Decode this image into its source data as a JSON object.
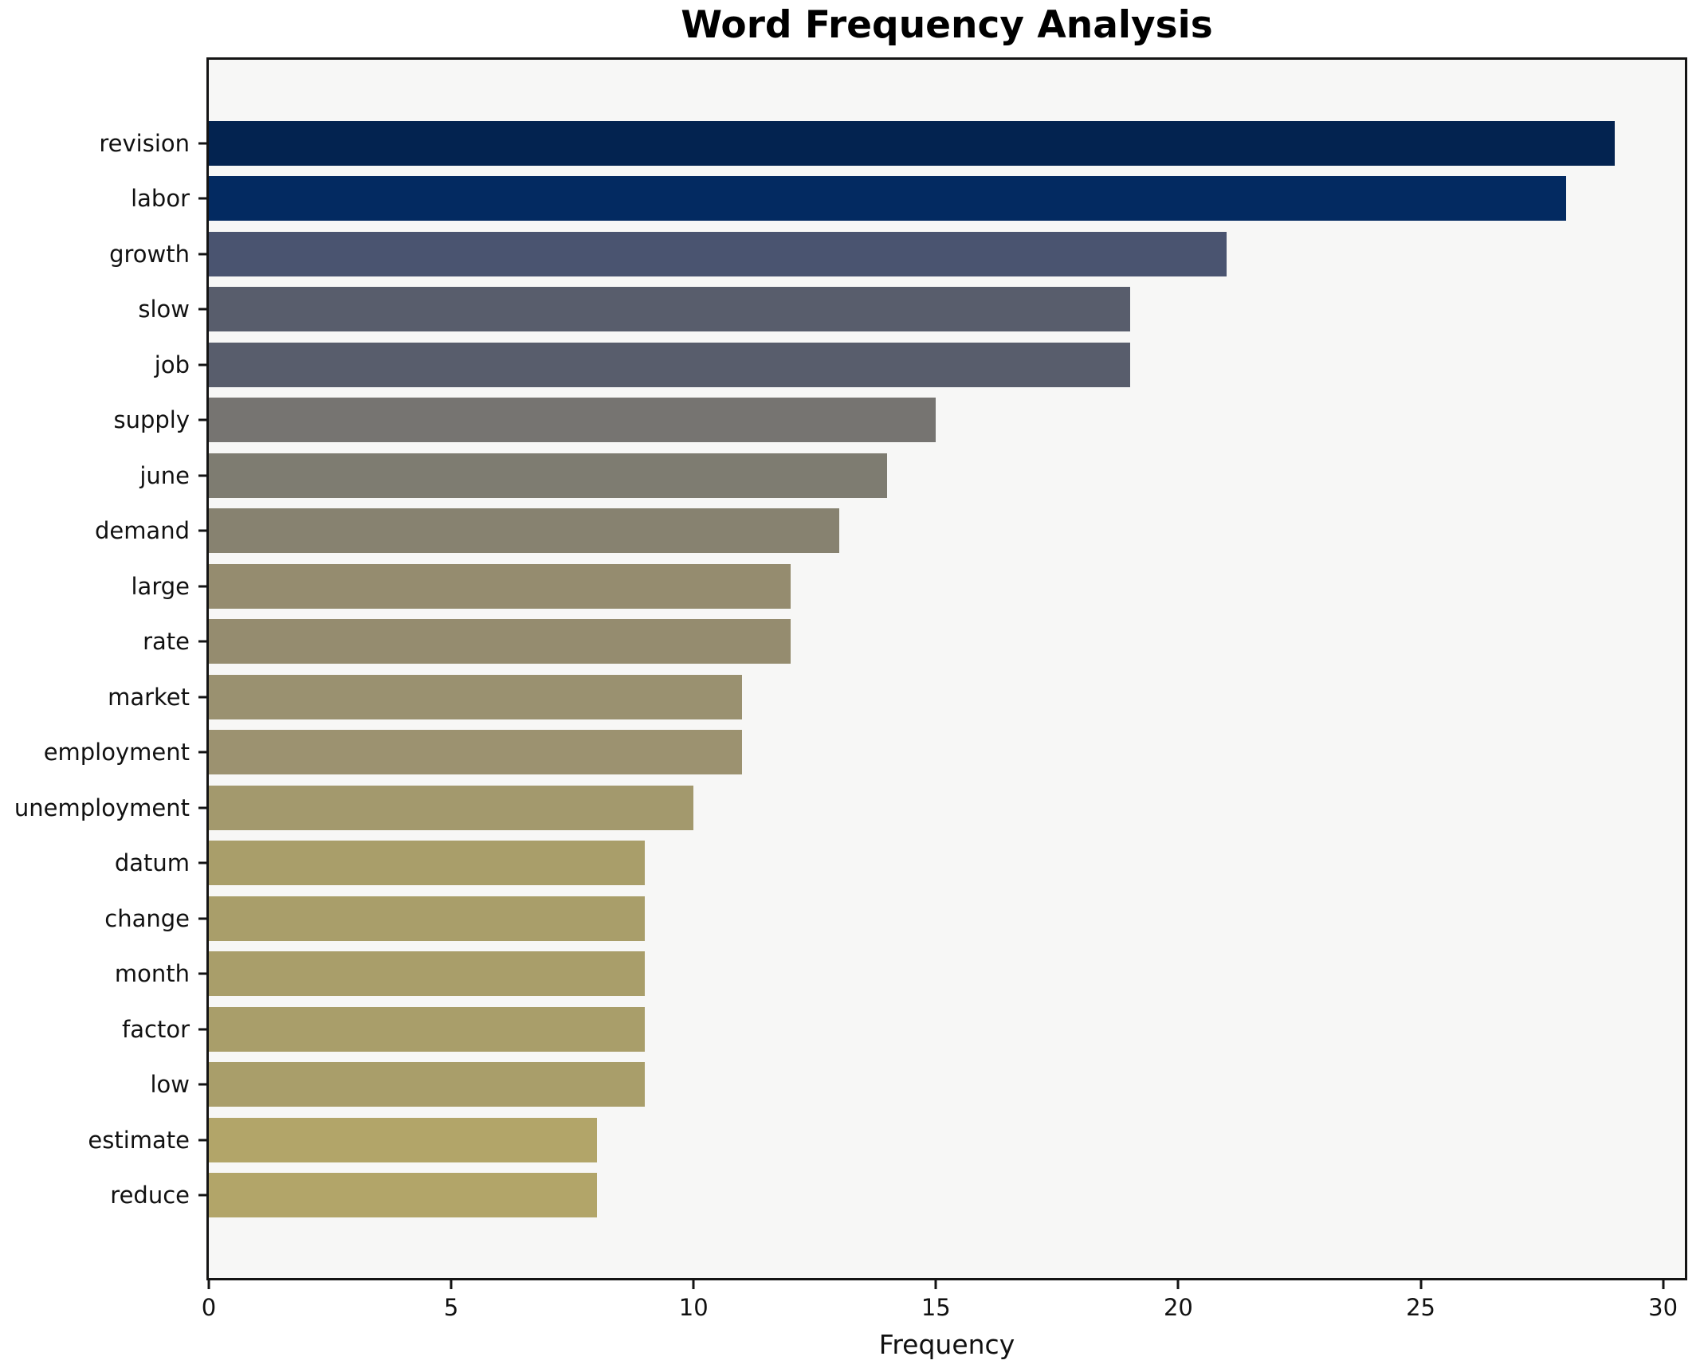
{
  "title": "Word Frequency Analysis",
  "chart_data": {
    "type": "bar",
    "orientation": "horizontal",
    "title": "Word Frequency Analysis",
    "xlabel": "Frequency",
    "ylabel": "",
    "categories": [
      "revision",
      "labor",
      "growth",
      "slow",
      "job",
      "supply",
      "june",
      "demand",
      "large",
      "rate",
      "market",
      "employment",
      "unemployment",
      "datum",
      "change",
      "month",
      "factor",
      "low",
      "estimate",
      "reduce"
    ],
    "values": [
      29,
      28,
      21,
      19,
      19,
      15,
      14,
      13,
      12,
      12,
      11,
      11,
      10,
      9,
      9,
      9,
      9,
      9,
      8,
      8
    ],
    "bar_colors": [
      "#032350",
      "#032a61",
      "#4a5470",
      "#585d6c",
      "#585d6c",
      "#767471",
      "#7e7c71",
      "#878270",
      "#958c6f",
      "#958c6f",
      "#9a9170",
      "#9c9270",
      "#a3996d",
      "#a99e6a",
      "#a99e6a",
      "#a99e6a",
      "#a99e6a",
      "#a99e6a",
      "#b2a569",
      "#b2a569"
    ],
    "xlim": [
      0,
      30.45
    ],
    "xticks": [
      0,
      5,
      10,
      15,
      20,
      25,
      30
    ],
    "grid": false,
    "legend_position": "none",
    "plot_background": "#f7f7f6",
    "figure_background": "#ffffff",
    "spine_color": "#141414",
    "text_color": "#111111"
  }
}
